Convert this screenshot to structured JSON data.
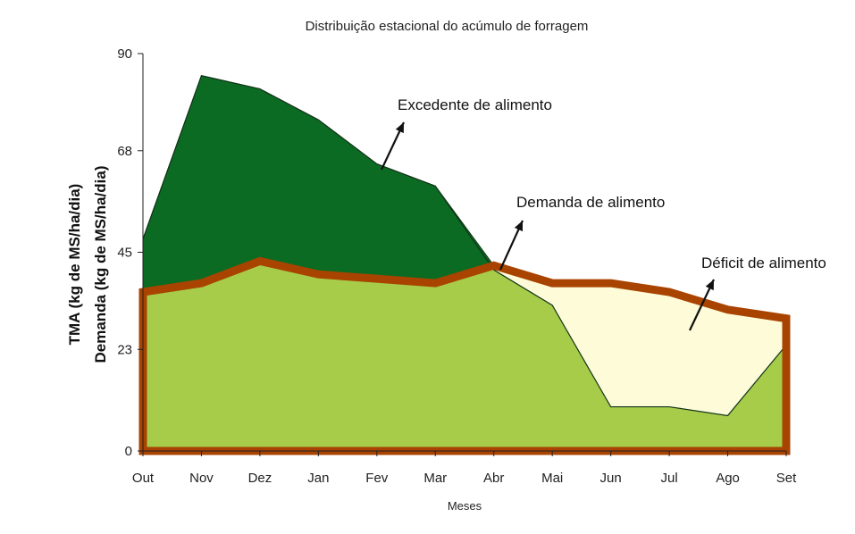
{
  "chart_data": {
    "type": "area",
    "title": "Distribuição estacional do acúmulo de forragem",
    "xlabel": "Meses",
    "ylabel_lines": [
      "TMA (kg de MS/ha/dia)",
      "Demanda (kg de MS/ha/dia)"
    ],
    "categories": [
      "Out",
      "Nov",
      "Dez",
      "Jan",
      "Fev",
      "Mar",
      "Abr",
      "Mai",
      "Jun",
      "Jul",
      "Ago",
      "Set"
    ],
    "ylim": [
      0,
      90
    ],
    "yticks": [
      0,
      23,
      45,
      68,
      90
    ],
    "series": [
      {
        "values": [
          48,
          85,
          82,
          75,
          65,
          60,
          41,
          33,
          10,
          10,
          8,
          24
        ]
      },
      {
        "values": [
          36,
          38,
          43,
          40,
          39,
          38,
          42,
          38,
          38,
          36,
          32,
          30
        ]
      }
    ],
    "annotations": [
      {
        "text": "Excedente de alimento"
      },
      {
        "text": "Demanda de alimento"
      },
      {
        "text": "Déficit de alimento"
      }
    ],
    "colors": {
      "surplus": "#0b6b23",
      "consumed": "#a6cc4a",
      "deficit": "#fdfbd8",
      "demand_line": "#a94300",
      "plot_background": "#ffffff"
    },
    "grid": false,
    "legend": "none"
  }
}
